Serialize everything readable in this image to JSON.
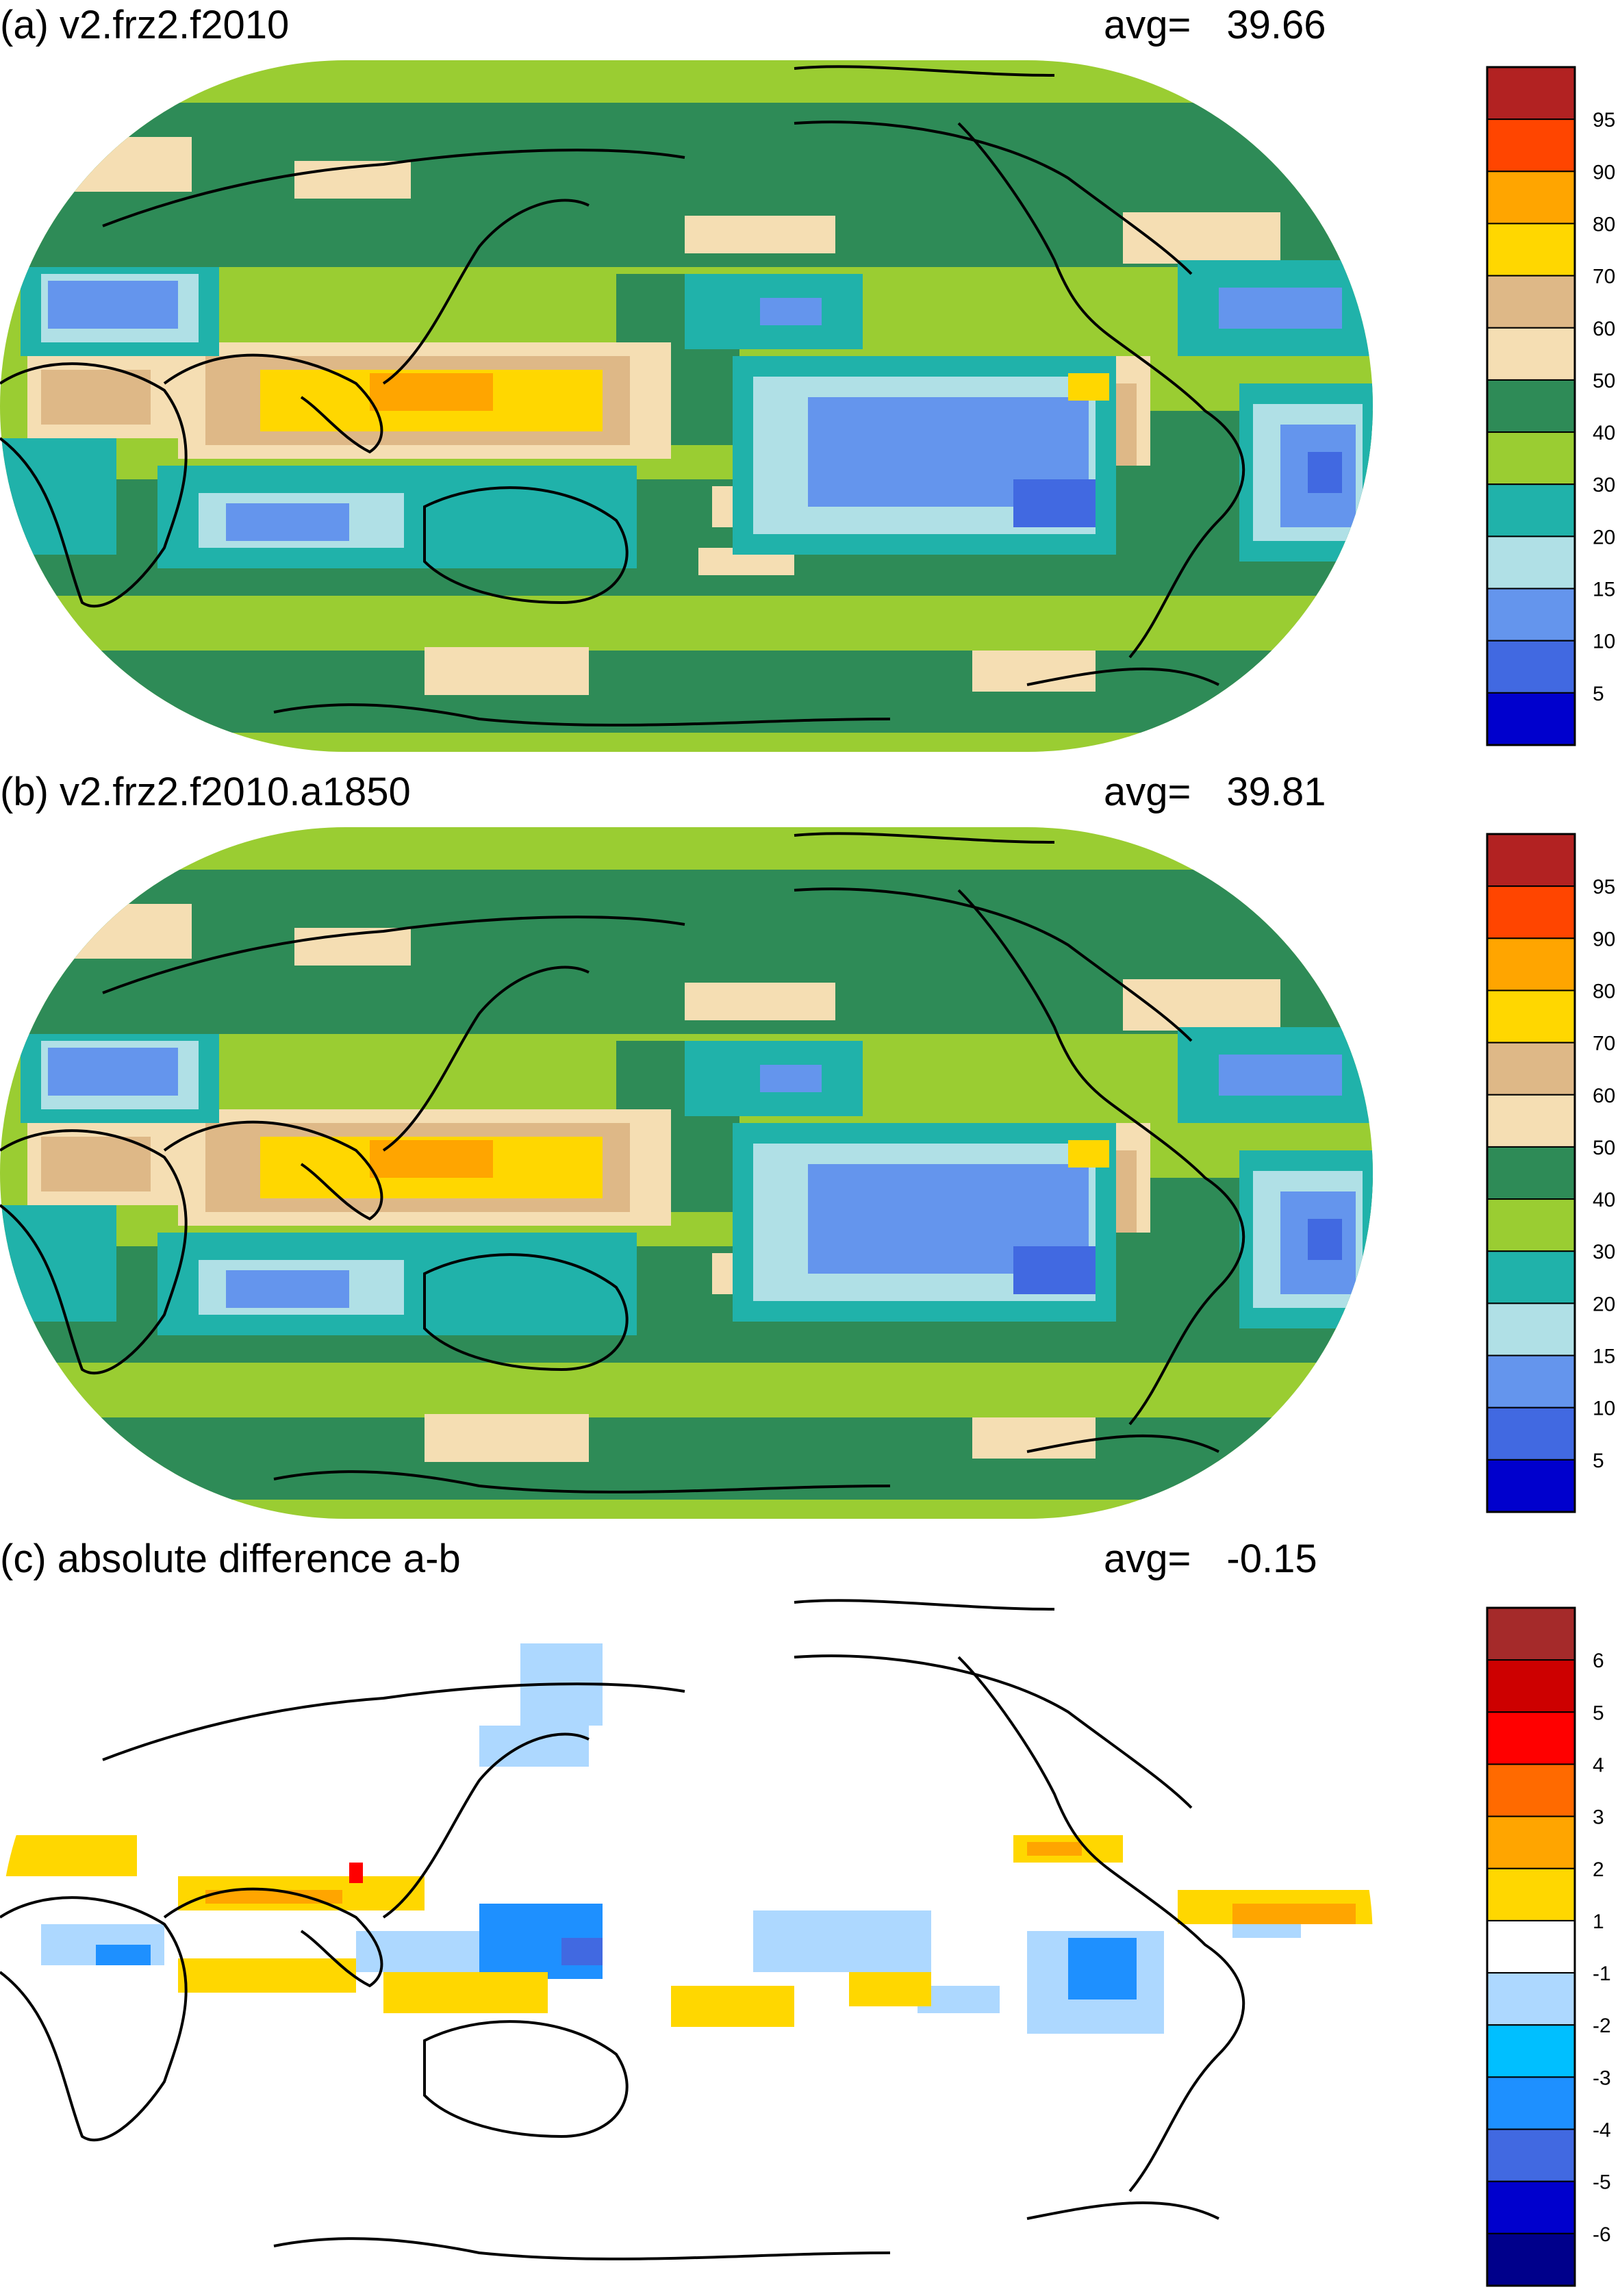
{
  "chart_data": [
    {
      "type": "heatmap",
      "title": "(a) v2.frz2.f2010",
      "avg_label": "avg=",
      "avg_value": "39.66",
      "projection": "Robinson, Pacific-centred, coastlines overlaid",
      "colorbar": {
        "labels": [
          "95",
          "90",
          "80",
          "70",
          "60",
          "50",
          "40",
          "30",
          "20",
          "15",
          "10",
          "5"
        ],
        "colors": [
          "#b22222",
          "#ff4500",
          "#ffa500",
          "#ffd700",
          "#deb887",
          "#f5deb3",
          "#2e8b57",
          "#9acd32",
          "#20b2aa",
          "#b0e0e6",
          "#6495ed",
          "#4169e1",
          "#0000cd"
        ]
      }
    },
    {
      "type": "heatmap",
      "title": "(b) v2.frz2.f2010.a1850",
      "avg_label": "avg=",
      "avg_value": "39.81",
      "projection": "Robinson, Pacific-centred, coastlines overlaid",
      "colorbar": {
        "labels": [
          "95",
          "90",
          "80",
          "70",
          "60",
          "50",
          "40",
          "30",
          "20",
          "15",
          "10",
          "5"
        ],
        "colors": [
          "#b22222",
          "#ff4500",
          "#ffa500",
          "#ffd700",
          "#deb887",
          "#f5deb3",
          "#2e8b57",
          "#9acd32",
          "#20b2aa",
          "#b0e0e6",
          "#6495ed",
          "#4169e1",
          "#0000cd"
        ]
      }
    },
    {
      "type": "heatmap",
      "title": "(c) absolute difference a-b",
      "avg_label": "avg=",
      "avg_value": "-0.15",
      "projection": "Robinson, Pacific-centred, coastlines overlaid",
      "colorbar": {
        "labels": [
          "6",
          "5",
          "4",
          "3",
          "2",
          "1",
          "-1",
          "-2",
          "-3",
          "-4",
          "-5",
          "-6"
        ],
        "colors": [
          "#a52a2a",
          "#cd0000",
          "#ff0000",
          "#ff6a00",
          "#ffa500",
          "#ffd700",
          "#ffffff",
          "#add8ff",
          "#00bfff",
          "#1e90ff",
          "#4169e1",
          "#0000cd",
          "#00008b"
        ]
      }
    }
  ]
}
